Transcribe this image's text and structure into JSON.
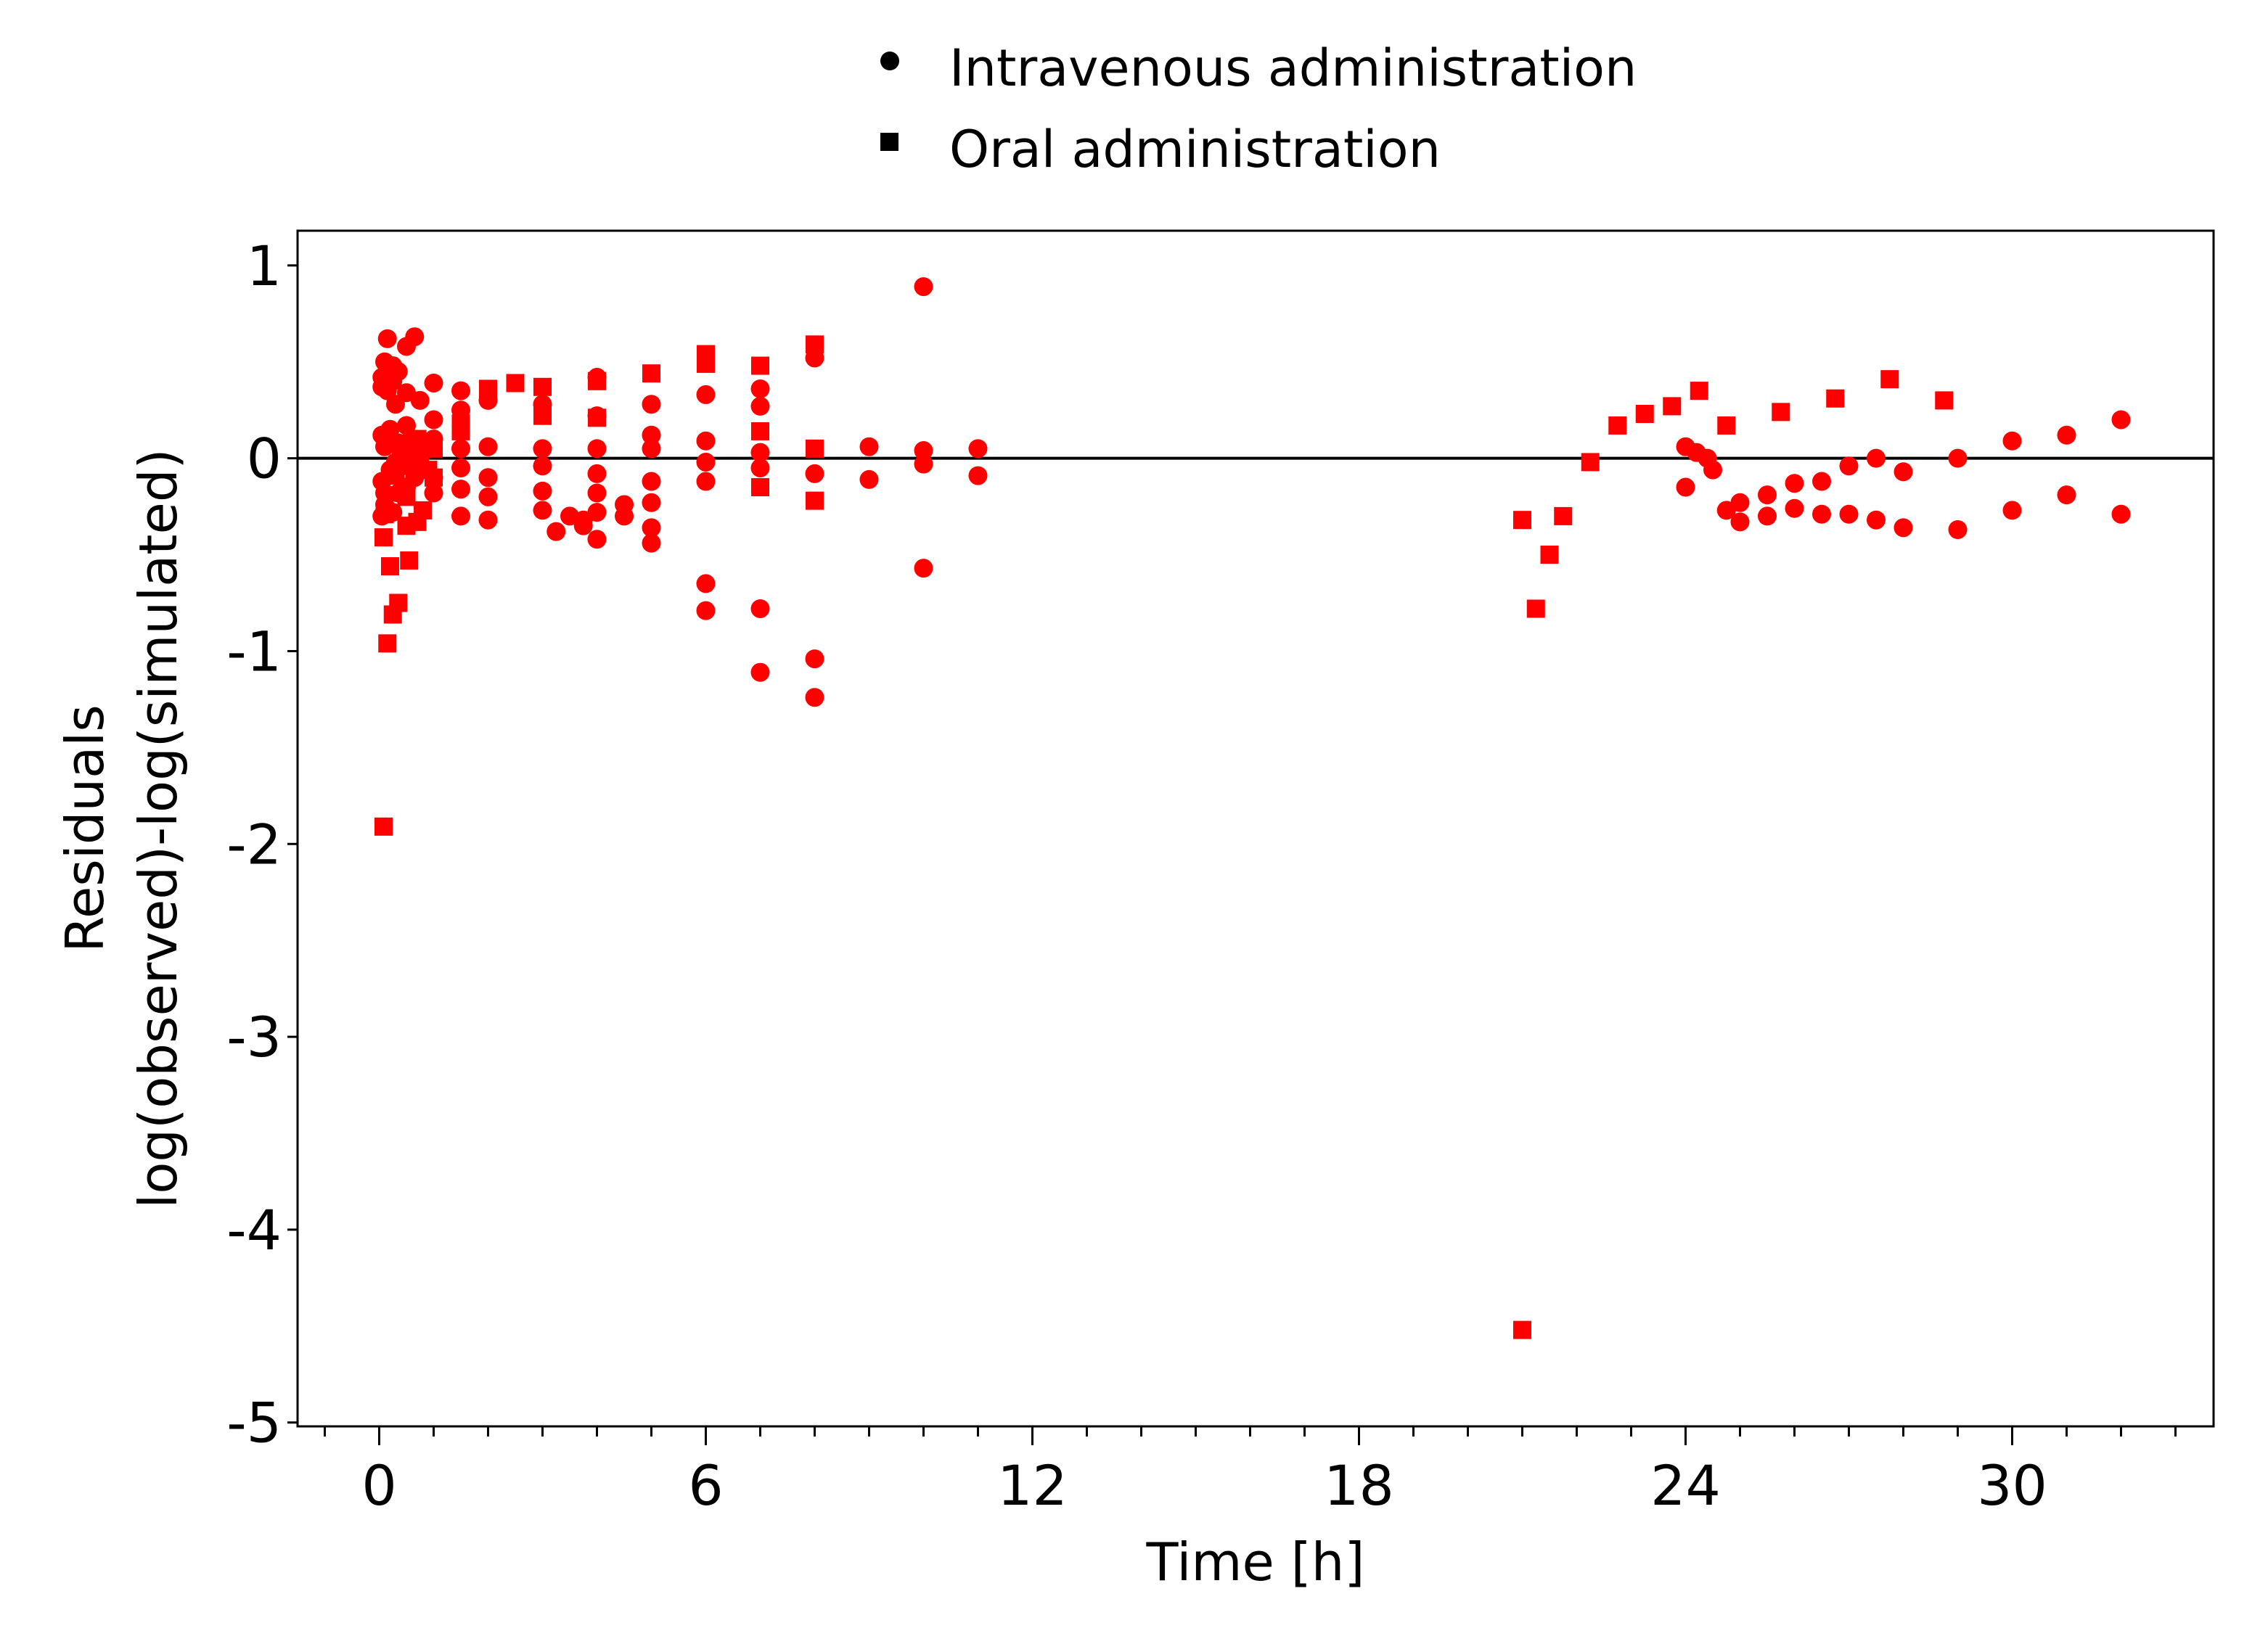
{
  "chart_data": {
    "type": "scatter",
    "title": "",
    "xlabel": "Time [h]",
    "ylabel_lines": [
      "Residuals",
      "log(observed)-log(simulated)"
    ],
    "xlim": [
      -1.5,
      33.7
    ],
    "ylim": [
      -5.02,
      1.18
    ],
    "xticks": [
      0,
      6,
      12,
      18,
      24,
      30
    ],
    "xtick_labels": [
      "0",
      "6",
      "12",
      "18",
      "24",
      "30"
    ],
    "x_minor_step": 1,
    "yticks": [
      1,
      0,
      -1,
      -2,
      -3,
      -4,
      -5
    ],
    "ytick_labels": [
      "1",
      "0",
      "-1",
      "-2",
      "-3",
      "-4",
      "-5"
    ],
    "zero_line": true,
    "grid": false,
    "legend_position": "top-center",
    "marker_color": "#ff0000",
    "series": [
      {
        "name": "Intravenous administration",
        "marker": "circle",
        "points": [
          [
            0.05,
            0.12
          ],
          [
            0.05,
            0.37
          ],
          [
            0.05,
            -0.12
          ],
          [
            0.05,
            -0.3
          ],
          [
            0.05,
            0.42
          ],
          [
            0.1,
            0.5
          ],
          [
            0.1,
            0.06
          ],
          [
            0.1,
            -0.18
          ],
          [
            0.1,
            -0.24
          ],
          [
            0.15,
            0.62
          ],
          [
            0.15,
            0.35
          ],
          [
            0.2,
            0.15
          ],
          [
            0.2,
            -0.06
          ],
          [
            0.25,
            0.48
          ],
          [
            0.25,
            0.4
          ],
          [
            0.25,
            -0.28
          ],
          [
            0.3,
            0.28
          ],
          [
            0.3,
            -0.02
          ],
          [
            0.35,
            0.45
          ],
          [
            0.35,
            0.08
          ],
          [
            0.35,
            -0.18
          ],
          [
            0.5,
            0.58
          ],
          [
            0.5,
            0.34
          ],
          [
            0.5,
            0.17
          ],
          [
            0.5,
            -0.02
          ],
          [
            0.5,
            -0.15
          ],
          [
            0.65,
            0.63
          ],
          [
            0.65,
            0.05
          ],
          [
            0.65,
            -0.1
          ],
          [
            0.75,
            0.3
          ],
          [
            0.75,
            -0.05
          ],
          [
            1.0,
            0.39
          ],
          [
            1.0,
            0.2
          ],
          [
            1.0,
            0.1
          ],
          [
            1.0,
            -0.1
          ],
          [
            1.0,
            -0.18
          ],
          [
            1.5,
            0.35
          ],
          [
            1.5,
            0.25
          ],
          [
            1.5,
            0.05
          ],
          [
            1.5,
            -0.05
          ],
          [
            1.5,
            -0.16
          ],
          [
            1.5,
            -0.3
          ],
          [
            2.0,
            0.3
          ],
          [
            2.0,
            0.06
          ],
          [
            2.0,
            -0.1
          ],
          [
            2.0,
            -0.2
          ],
          [
            2.0,
            -0.32
          ],
          [
            3.0,
            0.28
          ],
          [
            3.0,
            0.05
          ],
          [
            3.0,
            -0.04
          ],
          [
            3.0,
            -0.17
          ],
          [
            3.0,
            -0.27
          ],
          [
            3.25,
            -0.38
          ],
          [
            3.5,
            -0.3
          ],
          [
            3.75,
            -0.35
          ],
          [
            3.75,
            -0.32
          ],
          [
            4.0,
            0.42
          ],
          [
            4.0,
            0.22
          ],
          [
            4.0,
            0.05
          ],
          [
            4.0,
            -0.08
          ],
          [
            4.0,
            -0.18
          ],
          [
            4.0,
            -0.28
          ],
          [
            4.0,
            -0.42
          ],
          [
            4.5,
            -0.24
          ],
          [
            4.5,
            -0.3
          ],
          [
            5.0,
            0.28
          ],
          [
            5.0,
            0.12
          ],
          [
            5.0,
            0.05
          ],
          [
            5.0,
            -0.12
          ],
          [
            5.0,
            -0.23
          ],
          [
            5.0,
            -0.36
          ],
          [
            5.0,
            -0.44
          ],
          [
            6.0,
            0.33
          ],
          [
            6.0,
            0.09
          ],
          [
            6.0,
            -0.02
          ],
          [
            6.0,
            -0.12
          ],
          [
            6.0,
            -0.65
          ],
          [
            6.0,
            -0.79
          ],
          [
            7.0,
            0.36
          ],
          [
            7.0,
            0.27
          ],
          [
            7.0,
            0.03
          ],
          [
            7.0,
            -0.05
          ],
          [
            7.0,
            -0.78
          ],
          [
            7.0,
            -1.11
          ],
          [
            8.0,
            0.52
          ],
          [
            8.0,
            -0.08
          ],
          [
            8.0,
            -1.04
          ],
          [
            8.0,
            -1.24
          ],
          [
            9.0,
            0.06
          ],
          [
            9.0,
            -0.11
          ],
          [
            10.0,
            0.89
          ],
          [
            10.0,
            0.04
          ],
          [
            10.0,
            -0.03
          ],
          [
            10.0,
            -0.57
          ],
          [
            11.0,
            0.05
          ],
          [
            11.0,
            -0.09
          ],
          [
            24.0,
            0.06
          ],
          [
            24.0,
            -0.15
          ],
          [
            24.2,
            0.03
          ],
          [
            24.4,
            0.0
          ],
          [
            24.5,
            -0.06
          ],
          [
            24.75,
            -0.27
          ],
          [
            25.0,
            -0.23
          ],
          [
            25.0,
            -0.33
          ],
          [
            25.5,
            -0.19
          ],
          [
            25.5,
            -0.3
          ],
          [
            26.0,
            -0.13
          ],
          [
            26.0,
            -0.26
          ],
          [
            26.5,
            -0.12
          ],
          [
            26.5,
            -0.29
          ],
          [
            27.0,
            -0.04
          ],
          [
            27.0,
            -0.29
          ],
          [
            27.5,
            0.0
          ],
          [
            27.5,
            -0.32
          ],
          [
            28.0,
            -0.07
          ],
          [
            28.0,
            -0.36
          ],
          [
            29.0,
            0.0
          ],
          [
            29.0,
            -0.37
          ],
          [
            30.0,
            0.09
          ],
          [
            30.0,
            -0.27
          ],
          [
            31.0,
            0.12
          ],
          [
            31.0,
            -0.19
          ],
          [
            32.0,
            0.2
          ],
          [
            32.0,
            -0.29
          ]
        ]
      },
      {
        "name": "Oral administration",
        "marker": "square",
        "points": [
          [
            0.08,
            -1.91
          ],
          [
            0.08,
            -0.41
          ],
          [
            0.1,
            -0.29
          ],
          [
            0.15,
            -0.96
          ],
          [
            0.2,
            -0.56
          ],
          [
            0.25,
            -0.81
          ],
          [
            0.3,
            -0.09
          ],
          [
            0.35,
            -0.75
          ],
          [
            0.4,
            0.04
          ],
          [
            0.4,
            -0.04
          ],
          [
            0.5,
            -0.2
          ],
          [
            0.5,
            -0.35
          ],
          [
            0.55,
            -0.53
          ],
          [
            0.6,
            0.08
          ],
          [
            0.6,
            -0.02
          ],
          [
            0.7,
            0.1
          ],
          [
            0.7,
            -0.33
          ],
          [
            0.75,
            0.02
          ],
          [
            0.8,
            -0.27
          ],
          [
            0.85,
            0.07
          ],
          [
            0.9,
            -0.06
          ],
          [
            1.0,
            0.05
          ],
          [
            1.0,
            -0.1
          ],
          [
            1.5,
            0.18
          ],
          [
            1.5,
            0.14
          ],
          [
            2.0,
            0.36
          ],
          [
            2.5,
            0.39
          ],
          [
            3.0,
            0.37
          ],
          [
            3.0,
            0.22
          ],
          [
            4.0,
            0.4
          ],
          [
            4.0,
            0.21
          ],
          [
            5.0,
            0.44
          ],
          [
            6.0,
            0.54
          ],
          [
            6.0,
            0.49
          ],
          [
            7.0,
            0.48
          ],
          [
            7.0,
            0.14
          ],
          [
            7.0,
            -0.15
          ],
          [
            8.0,
            0.59
          ],
          [
            8.0,
            0.05
          ],
          [
            8.0,
            -0.22
          ],
          [
            21.0,
            -4.52
          ],
          [
            21.0,
            -0.32
          ],
          [
            21.25,
            -0.78
          ],
          [
            21.5,
            -0.5
          ],
          [
            21.75,
            -0.3
          ],
          [
            22.25,
            -0.02
          ],
          [
            22.75,
            0.17
          ],
          [
            23.25,
            0.23
          ],
          [
            23.75,
            0.27
          ],
          [
            24.25,
            0.35
          ],
          [
            24.75,
            0.17
          ],
          [
            25.75,
            0.24
          ],
          [
            26.75,
            0.31
          ],
          [
            27.75,
            0.41
          ],
          [
            28.75,
            0.3
          ]
        ]
      }
    ]
  }
}
